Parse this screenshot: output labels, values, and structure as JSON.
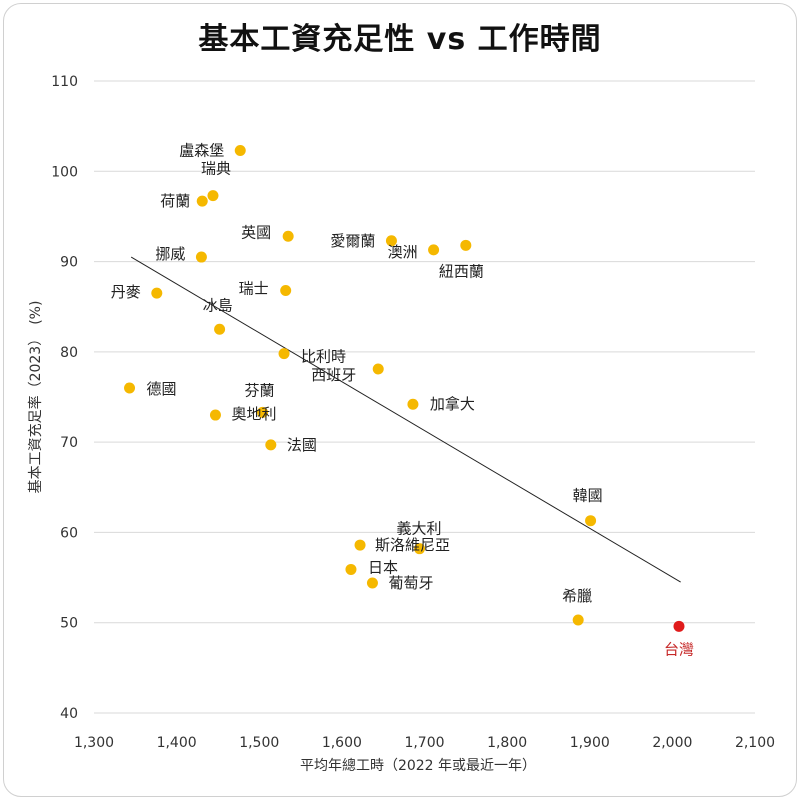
{
  "chart_data": {
    "type": "scatter",
    "title": "基本工資充足性 vs 工作時間",
    "xlabel": "平均年總工時（2022 年或最近一年）",
    "ylabel": "基本工資充足率（2023）　(%)",
    "xlim": [
      1300,
      2100
    ],
    "ylim": [
      40,
      110
    ],
    "x_ticks": [
      "1,300",
      "1,400",
      "1,500",
      "1,600",
      "1,700",
      "1,800",
      "1,900",
      "2,000",
      "2,100"
    ],
    "y_ticks": [
      "40",
      "50",
      "60",
      "70",
      "80",
      "90",
      "100",
      "110"
    ],
    "grid": "horizontal",
    "point_color": "#f5b800",
    "highlight_color": "#e01b1b",
    "trendline": {
      "x": [
        1345,
        2010
      ],
      "y": [
        90.5,
        54.5
      ]
    },
    "points": [
      {
        "label": "盧森堡",
        "x": 1477,
        "y": 102.3
      },
      {
        "label": "瑞典",
        "x": 1444,
        "y": 97.3
      },
      {
        "label": "荷蘭",
        "x": 1431,
        "y": 96.7
      },
      {
        "label": "英國",
        "x": 1535,
        "y": 92.8
      },
      {
        "label": "愛爾蘭",
        "x": 1660,
        "y": 92.3
      },
      {
        "label": "澳洲",
        "x": 1711,
        "y": 91.3
      },
      {
        "label": "紐西蘭",
        "x": 1750,
        "y": 91.8
      },
      {
        "label": "挪威",
        "x": 1430,
        "y": 90.5
      },
      {
        "label": "丹麥",
        "x": 1376,
        "y": 86.5
      },
      {
        "label": "瑞士",
        "x": 1532,
        "y": 86.8
      },
      {
        "label": "冰島",
        "x": 1452,
        "y": 82.5
      },
      {
        "label": "比利時",
        "x": 1530,
        "y": 79.8
      },
      {
        "label": "西班牙",
        "x": 1644,
        "y": 78.1
      },
      {
        "label": "德國",
        "x": 1343,
        "y": 76.0
      },
      {
        "label": "芬蘭",
        "x": 1504,
        "y": 73.3
      },
      {
        "label": "奧地利",
        "x": 1447,
        "y": 73.0
      },
      {
        "label": "加拿大",
        "x": 1686,
        "y": 74.2
      },
      {
        "label": "法國",
        "x": 1514,
        "y": 69.7
      },
      {
        "label": "韓國",
        "x": 1901,
        "y": 61.3
      },
      {
        "label": "義大利",
        "x": 1694,
        "y": 58.2
      },
      {
        "label": "斯洛維尼亞",
        "x": 1622,
        "y": 58.6
      },
      {
        "label": "日本",
        "x": 1611,
        "y": 55.9
      },
      {
        "label": "葡萄牙",
        "x": 1637,
        "y": 54.4
      },
      {
        "label": "希臘",
        "x": 1886,
        "y": 50.3
      },
      {
        "label": "台灣",
        "x": 2008,
        "y": 49.6,
        "highlight": true
      }
    ]
  }
}
